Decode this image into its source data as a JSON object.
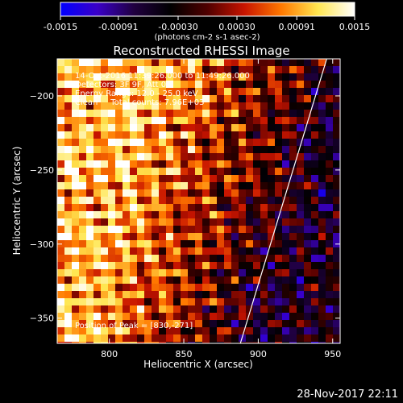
{
  "chart_data": {
    "type": "heatmap",
    "title": "Reconstructed RHESSI Image",
    "xlabel": "Heliocentric X (arcsec)",
    "ylabel": "Heliocentric Y (arcsec)",
    "xlim": [
      765,
      955
    ],
    "ylim": [
      -367,
      -175
    ],
    "xticks": [
      800,
      850,
      900,
      950
    ],
    "yticks": [
      -200,
      -250,
      -300,
      -350
    ],
    "colorbar": {
      "min": -0.0015,
      "max": 0.0015,
      "tick_values": [
        -0.0015,
        -0.00091,
        -0.0003,
        0.0003,
        0.00091,
        0.0015
      ],
      "tick_labels": [
        "-0.0015",
        "-0.00091",
        "-0.00030",
        "0.00030",
        "0.00091",
        "0.0015"
      ],
      "unit_label": "(photons cm-2 s-1 asec-2)",
      "colors": [
        "#0000ff",
        "#3a00c8",
        "#200040",
        "#000000",
        "#500000",
        "#c81400",
        "#ff7800",
        "#ffe650",
        "#ffffff"
      ]
    },
    "annotations": [
      "14-Oct-2016 11:39:26.000 to 11:49:26.000",
      "Detectors: 3F 9F, Att 0",
      "Energy Range: 12.0 - 25.0 keV",
      "Clean     Total counts: 7.96E+03",
      "Position of Peak = [830,-271]"
    ],
    "limb_line": [
      [
        888,
        -367
      ],
      [
        946,
        -175
      ]
    ],
    "limb_color": "#ffffff"
  },
  "footer": {
    "timestamp": "28-Nov-2017 22:11"
  }
}
